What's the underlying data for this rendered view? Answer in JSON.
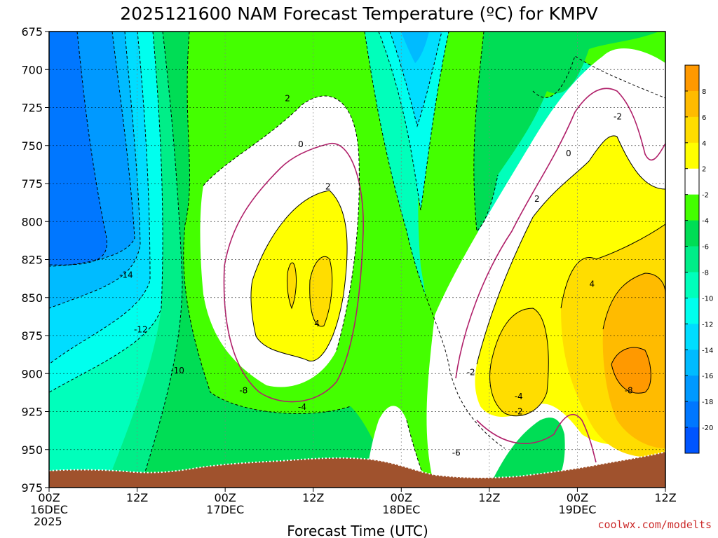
{
  "chart_data": {
    "type": "heatmap",
    "title": "2025121600 NAM Forecast Temperature (ºC) for KMPV",
    "xlabel": "Forecast Time (UTC)",
    "y_ticks": [
      675,
      700,
      725,
      750,
      775,
      800,
      825,
      850,
      875,
      900,
      925,
      950,
      975
    ],
    "ylim": [
      975,
      675
    ],
    "x_hours": [
      0,
      12,
      24,
      36,
      48,
      60,
      72,
      84
    ],
    "x_ticks": [
      {
        "hour": 0,
        "line1": "00Z",
        "line2": "16DEC",
        "line3": "2025"
      },
      {
        "hour": 12,
        "line1": "12Z",
        "line2": "",
        "line3": ""
      },
      {
        "hour": 24,
        "line1": "00Z",
        "line2": "17DEC",
        "line3": ""
      },
      {
        "hour": 36,
        "line1": "12Z",
        "line2": "",
        "line3": ""
      },
      {
        "hour": 48,
        "line1": "00Z",
        "line2": "18DEC",
        "line3": ""
      },
      {
        "hour": 60,
        "line1": "12Z",
        "line2": "",
        "line3": ""
      },
      {
        "hour": 72,
        "line1": "00Z",
        "line2": "19DEC",
        "line3": ""
      },
      {
        "hour": 84,
        "line1": "12Z",
        "line2": "",
        "line3": ""
      }
    ],
    "xlim": [
      0,
      84
    ],
    "grid": true,
    "legend": "right",
    "colorbar": {
      "levels": [
        -22,
        -20,
        -18,
        -16,
        -14,
        -12,
        -10,
        -8,
        -6,
        -4,
        -2,
        2,
        4,
        6,
        8,
        10
      ],
      "colors": [
        "#0055ff",
        "#0077ff",
        "#0099ff",
        "#00bbff",
        "#00ddff",
        "#00ffee",
        "#00ffbb",
        "#00ee88",
        "#00dd55",
        "#44ff00",
        "#ffffff",
        "#ffff00",
        "#ffdd00",
        "#ffbb00",
        "#ff9900"
      ],
      "tick_labels": [
        "-20",
        "-18",
        "-16",
        "-14",
        "-12",
        "-10",
        "-8",
        "-6",
        "-4",
        "-2",
        "2",
        "4",
        "6",
        "8"
      ]
    },
    "contour_labels": [
      {
        "text": "2",
        "hour": 32.5,
        "p": 720
      },
      {
        "text": "0",
        "hour": 34.3,
        "p": 750
      },
      {
        "text": "2",
        "hour": 38.0,
        "p": 778
      },
      {
        "text": "4",
        "hour": 36.5,
        "p": 868
      },
      {
        "text": "-14",
        "hour": 10.5,
        "p": 836
      },
      {
        "text": "-12",
        "hour": 12.5,
        "p": 872
      },
      {
        "text": "-10",
        "hour": 17.5,
        "p": 899
      },
      {
        "text": "-8",
        "hour": 26.5,
        "p": 912
      },
      {
        "text": "-4",
        "hour": 34.5,
        "p": 923
      },
      {
        "text": "-2",
        "hour": 57.5,
        "p": 900
      },
      {
        "text": "-6",
        "hour": 55.5,
        "p": 953
      },
      {
        "text": "-2",
        "hour": 64.0,
        "p": 926
      },
      {
        "text": "-4",
        "hour": 64.0,
        "p": 916
      },
      {
        "text": "2",
        "hour": 66.5,
        "p": 786
      },
      {
        "text": "0",
        "hour": 70.8,
        "p": 756
      },
      {
        "text": "-2",
        "hour": 77.5,
        "p": 732
      },
      {
        "text": "4",
        "hour": 74.0,
        "p": 842
      },
      {
        "text": "-8",
        "hour": 79.0,
        "p": 912
      }
    ],
    "series": [
      {
        "name": "",
        "values": []
      }
    ]
  },
  "credit": "coolwx.com/modelts",
  "colors": {
    "terrain": "#a0522d",
    "freezing_contour": "#b0206a",
    "grid": "#7f7f7f"
  }
}
